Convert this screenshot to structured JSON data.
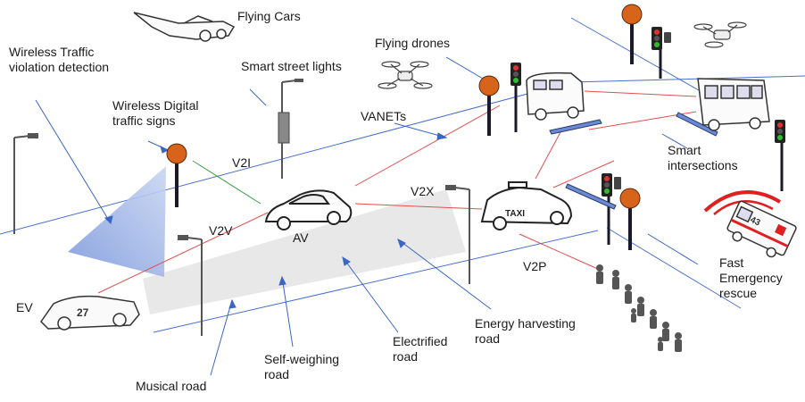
{
  "labels": {
    "flying_cars": "Flying Cars",
    "flying_drones": "Flying drones",
    "smart_street_lights": "Smart street lights",
    "wireless_traffic_violation": "Wireless Traffic violation detection",
    "wireless_digital_signs": "Wireless Digital traffic signs",
    "vanets": "VANETs",
    "v2i": "V2I",
    "v2v": "V2V",
    "av": "AV",
    "v2x": "V2X",
    "v2p": "V2P",
    "smart_intersections": "Smart intersections",
    "fast_emergency": "Fast Emergency rescue",
    "ev": "EV",
    "energy_harvesting": "Energy harvesting road",
    "electrified_road": "Electrified road",
    "self_weighing": "Self-weighing road",
    "musical_road": "Musical road"
  },
  "vehicle_text": {
    "taxi": "TAXI",
    "ev_number": "27",
    "ambulance_number": "43"
  },
  "colors": {
    "v2v_link": "#e05050",
    "v2i_link": "#3aa048",
    "pointer": "#3a66c4",
    "road_edge": "#4a6fd0",
    "sign_orange": "#d8641c",
    "sign_pole": "#1a1a2a",
    "beam": "#9fb4e6",
    "road_surface": "#e8e8e8",
    "siren": "#e02020"
  }
}
